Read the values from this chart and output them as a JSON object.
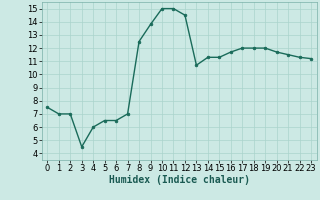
{
  "x": [
    0,
    1,
    2,
    3,
    4,
    5,
    6,
    7,
    8,
    9,
    10,
    11,
    12,
    13,
    14,
    15,
    16,
    17,
    18,
    19,
    20,
    21,
    22,
    23
  ],
  "y": [
    7.5,
    7.0,
    7.0,
    4.5,
    6.0,
    6.5,
    6.5,
    7.0,
    12.5,
    13.8,
    15.0,
    15.0,
    14.5,
    10.7,
    11.3,
    11.3,
    11.7,
    12.0,
    12.0,
    12.0,
    11.7,
    11.5,
    11.3,
    11.2
  ],
  "line_color": "#1a6b5a",
  "marker": "o",
  "markersize": 2.0,
  "linewidth": 1.0,
  "xlabel": "Humidex (Indice chaleur)",
  "xlim": [
    -0.5,
    23.5
  ],
  "ylim": [
    3.5,
    15.5
  ],
  "yticks": [
    4,
    5,
    6,
    7,
    8,
    9,
    10,
    11,
    12,
    13,
    14,
    15
  ],
  "xticks": [
    0,
    1,
    2,
    3,
    4,
    5,
    6,
    7,
    8,
    9,
    10,
    11,
    12,
    13,
    14,
    15,
    16,
    17,
    18,
    19,
    20,
    21,
    22,
    23
  ],
  "background_color": "#cce9e4",
  "grid_color": "#aad4cd",
  "tick_fontsize": 6,
  "xlabel_fontsize": 7
}
